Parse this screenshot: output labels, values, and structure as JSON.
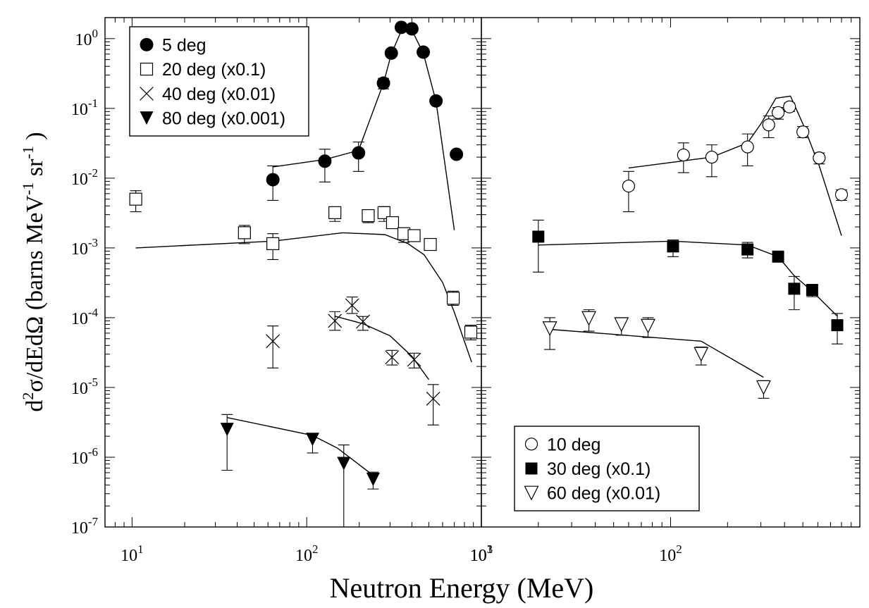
{
  "chart_data": [
    {
      "type": "scatter",
      "panel": "left",
      "xscale": "log",
      "yscale": "log",
      "xlim": [
        7,
        1000
      ],
      "ylim": [
        1e-07,
        2
      ],
      "xlabel": "Neutron Energy (MeV)",
      "ylabel_parts": [
        "d",
        "2",
        "σ/dEdΩ (barns MeV",
        "-1",
        " sr",
        "-1",
        " )"
      ],
      "x_tick_labels": [
        {
          "value": 10,
          "base": "10",
          "exp": "1"
        },
        {
          "value": 100,
          "base": "10",
          "exp": "2"
        },
        {
          "value": 1000,
          "base": "10",
          "exp": "3"
        }
      ],
      "y_tick_labels": [
        {
          "value": 1,
          "base": "10",
          "exp": "0"
        },
        {
          "value": 0.1,
          "base": "10",
          "exp": "-1"
        },
        {
          "value": 0.01,
          "base": "10",
          "exp": "-2"
        },
        {
          "value": 0.001,
          "base": "10",
          "exp": "-3"
        },
        {
          "value": 0.0001,
          "base": "10",
          "exp": "-4"
        },
        {
          "value": 1e-05,
          "base": "10",
          "exp": "-5"
        },
        {
          "value": 1e-06,
          "base": "10",
          "exp": "-6"
        },
        {
          "value": 1e-07,
          "base": "10",
          "exp": "-7"
        }
      ],
      "legend": {
        "position": "top-left"
      },
      "series": [
        {
          "name": "5 deg",
          "marker": "filled-circle",
          "points": [
            {
              "x": 64,
              "y": 0.0095,
              "lo": 0.0048,
              "hi": 0.015
            },
            {
              "x": 127,
              "y": 0.0175,
              "lo": 0.0088,
              "hi": 0.026
            },
            {
              "x": 198,
              "y": 0.023,
              "lo": 0.0125,
              "hi": 0.033
            },
            {
              "x": 275,
              "y": 0.23,
              "lo": 0.19,
              "hi": 0.27
            },
            {
              "x": 305,
              "y": 0.62,
              "lo": 0.56,
              "hi": 0.68
            },
            {
              "x": 348,
              "y": 1.45
            },
            {
              "x": 400,
              "y": 1.38
            },
            {
              "x": 465,
              "y": 0.64
            },
            {
              "x": 550,
              "y": 0.128
            },
            {
              "x": 720,
              "y": 0.022
            }
          ],
          "curve": [
            {
              "x": 64,
              "y": 0.0145
            },
            {
              "x": 127,
              "y": 0.0185
            },
            {
              "x": 198,
              "y": 0.025
            },
            {
              "x": 275,
              "y": 0.23
            },
            {
              "x": 305,
              "y": 0.6
            },
            {
              "x": 348,
              "y": 1.3
            },
            {
              "x": 390,
              "y": 1.5
            },
            {
              "x": 465,
              "y": 0.62
            },
            {
              "x": 550,
              "y": 0.125
            },
            {
              "x": 700,
              "y": 0.0018
            }
          ]
        },
        {
          "name": "20 deg (x0.1)",
          "marker": "open-square",
          "points": [
            {
              "x": 10.5,
              "y": 0.005,
              "lo": 0.0033,
              "hi": 0.0066
            },
            {
              "x": 44,
              "y": 0.00165,
              "lo": 0.00115,
              "hi": 0.0021
            },
            {
              "x": 64,
              "y": 0.00115,
              "lo": 0.00068,
              "hi": 0.0016
            },
            {
              "x": 145,
              "y": 0.0032,
              "lo": 0.0024,
              "hi": 0.0038
            },
            {
              "x": 225,
              "y": 0.0029,
              "lo": 0.0023,
              "hi": 0.0035
            },
            {
              "x": 277,
              "y": 0.0032,
              "lo": 0.0024,
              "hi": 0.0039
            },
            {
              "x": 310,
              "y": 0.0023,
              "lo": 0.0019,
              "hi": 0.0027
            },
            {
              "x": 360,
              "y": 0.0016,
              "lo": 0.0012,
              "hi": 0.0018
            },
            {
              "x": 412,
              "y": 0.0015
            },
            {
              "x": 510,
              "y": 0.00112
            },
            {
              "x": 690,
              "y": 0.00019,
              "lo": 0.00015,
              "hi": 0.00024
            },
            {
              "x": 870,
              "y": 6.2e-05,
              "lo": 4.8e-05,
              "hi": 7.8e-05
            }
          ],
          "curve": [
            {
              "x": 10.5,
              "y": 0.001
            },
            {
              "x": 64,
              "y": 0.00125
            },
            {
              "x": 160,
              "y": 0.00165
            },
            {
              "x": 280,
              "y": 0.00155
            },
            {
              "x": 380,
              "y": 0.00115
            },
            {
              "x": 470,
              "y": 0.0008
            },
            {
              "x": 600,
              "y": 0.00032
            },
            {
              "x": 700,
              "y": 0.00012
            },
            {
              "x": 880,
              "y": 2.3e-05
            }
          ]
        },
        {
          "name": "40 deg (x0.01)",
          "marker": "cross",
          "points": [
            {
              "x": 64,
              "y": 4.6e-05,
              "lo": 1.9e-05,
              "hi": 7.6e-05
            },
            {
              "x": 145,
              "y": 9e-05,
              "lo": 6.6e-05,
              "hi": 0.000122
            },
            {
              "x": 182,
              "y": 0.00015,
              "lo": 0.000115,
              "hi": 0.000198
            },
            {
              "x": 210,
              "y": 8.8e-05,
              "lo": 6.6e-05,
              "hi": 0.000104
            },
            {
              "x": 308,
              "y": 2.7e-05,
              "lo": 2.1e-05,
              "hi": 3.4e-05
            },
            {
              "x": 412,
              "y": 2.5e-05,
              "lo": 1.9e-05,
              "hi": 3.1e-05
            },
            {
              "x": 530,
              "y": 6.9e-06,
              "lo": 2.9e-06,
              "hi": 1.1e-05
            }
          ],
          "curve": [
            {
              "x": 145,
              "y": 0.000105
            },
            {
              "x": 210,
              "y": 8.2e-05
            },
            {
              "x": 300,
              "y": 5.5e-05
            },
            {
              "x": 400,
              "y": 2.8e-05
            },
            {
              "x": 500,
              "y": 1.3e-05
            }
          ]
        },
        {
          "name": "80 deg (x0.001)",
          "marker": "filled-down-triangle",
          "points": [
            {
              "x": 35,
              "y": 2.5e-06,
              "lo": 6.5e-07,
              "hi": 4.1e-06
            },
            {
              "x": 108,
              "y": 1.8e-06,
              "lo": 1.15e-06,
              "hi": 2.2e-06
            },
            {
              "x": 163,
              "y": 8.1e-07,
              "lo": 1e-07,
              "hi": 1.5e-06
            },
            {
              "x": 240,
              "y": 4.8e-07,
              "lo": 3.5e-07,
              "hi": 6.1e-07
            }
          ],
          "curve": [
            {
              "x": 35,
              "y": 3.7e-06
            },
            {
              "x": 108,
              "y": 2.05e-06
            },
            {
              "x": 150,
              "y": 1.35e-06
            },
            {
              "x": 240,
              "y": 5.5e-07
            }
          ]
        }
      ]
    },
    {
      "type": "scatter",
      "panel": "right",
      "xscale": "log",
      "yscale": "log",
      "xlim": [
        10,
        1000
      ],
      "ylim": [
        1e-07,
        2
      ],
      "x_tick_labels": [
        {
          "value": 10,
          "base": "10",
          "exp": "1"
        },
        {
          "value": 100,
          "base": "10",
          "exp": "2"
        }
      ],
      "legend": {
        "position": "bottom-right"
      },
      "series": [
        {
          "name": "10 deg",
          "marker": "open-circle",
          "points": [
            {
              "x": 60,
              "y": 0.0077,
              "lo": 0.0033,
              "hi": 0.0125
            },
            {
              "x": 117,
              "y": 0.0215,
              "lo": 0.012,
              "hi": 0.032
            },
            {
              "x": 165,
              "y": 0.02,
              "lo": 0.0105,
              "hi": 0.03
            },
            {
              "x": 255,
              "y": 0.028,
              "lo": 0.015,
              "hi": 0.043
            },
            {
              "x": 330,
              "y": 0.058,
              "lo": 0.038,
              "hi": 0.078
            },
            {
              "x": 370,
              "y": 0.087,
              "lo": 0.07,
              "hi": 0.103
            },
            {
              "x": 425,
              "y": 0.105,
              "lo": 0.09,
              "hi": 0.12
            },
            {
              "x": 500,
              "y": 0.046,
              "lo": 0.038,
              "hi": 0.055
            },
            {
              "x": 610,
              "y": 0.0195,
              "lo": 0.016,
              "hi": 0.023
            },
            {
              "x": 800,
              "y": 0.0058,
              "lo": 0.0048,
              "hi": 0.0068
            }
          ],
          "curve": [
            {
              "x": 60,
              "y": 0.014
            },
            {
              "x": 165,
              "y": 0.02
            },
            {
              "x": 255,
              "y": 0.032
            },
            {
              "x": 300,
              "y": 0.06
            },
            {
              "x": 360,
              "y": 0.14
            },
            {
              "x": 430,
              "y": 0.15
            },
            {
              "x": 500,
              "y": 0.06
            },
            {
              "x": 610,
              "y": 0.015
            },
            {
              "x": 800,
              "y": 0.0015
            }
          ]
        },
        {
          "name": "30 deg (x0.1)",
          "marker": "filled-square",
          "points": [
            {
              "x": 20,
              "y": 0.00145,
              "lo": 0.00045,
              "hi": 0.0025
            },
            {
              "x": 103,
              "y": 0.00105,
              "lo": 0.00075,
              "hi": 0.0013
            },
            {
              "x": 255,
              "y": 0.00095,
              "lo": 0.00072,
              "hi": 0.0012
            },
            {
              "x": 370,
              "y": 0.00075
            },
            {
              "x": 450,
              "y": 0.00026,
              "lo": 0.00013,
              "hi": 0.00039
            },
            {
              "x": 560,
              "y": 0.00025,
              "lo": 0.0002,
              "hi": 0.0003
            },
            {
              "x": 760,
              "y": 7.8e-05,
              "lo": 4.2e-05,
              "hi": 0.000115
            }
          ],
          "curve": [
            {
              "x": 20,
              "y": 0.0011
            },
            {
              "x": 103,
              "y": 0.00125
            },
            {
              "x": 255,
              "y": 0.0011
            },
            {
              "x": 370,
              "y": 0.00075
            },
            {
              "x": 450,
              "y": 0.0004
            },
            {
              "x": 560,
              "y": 0.00024
            },
            {
              "x": 760,
              "y": 0.000105
            }
          ]
        },
        {
          "name": "60 deg (x0.01)",
          "marker": "open-down-triangle",
          "points": [
            {
              "x": 23,
              "y": 7e-05,
              "lo": 3.5e-05,
              "hi": 0.0001
            },
            {
              "x": 37,
              "y": 9.8e-05,
              "lo": 6.4e-05,
              "hi": 0.00013
            },
            {
              "x": 55,
              "y": 8e-05,
              "lo": 5.6e-05,
              "hi": 0.0001
            },
            {
              "x": 76,
              "y": 7.6e-05,
              "lo": 5.2e-05,
              "hi": 0.0001
            },
            {
              "x": 145,
              "y": 3e-05,
              "lo": 2.1e-05,
              "hi": 3.8e-05
            },
            {
              "x": 310,
              "y": 1e-05,
              "lo": 7e-06,
              "hi": 1.25e-05
            }
          ],
          "curve": [
            {
              "x": 23,
              "y": 6.8e-05
            },
            {
              "x": 145,
              "y": 4.6e-05
            },
            {
              "x": 310,
              "y": 1.4e-05
            }
          ]
        }
      ]
    }
  ]
}
